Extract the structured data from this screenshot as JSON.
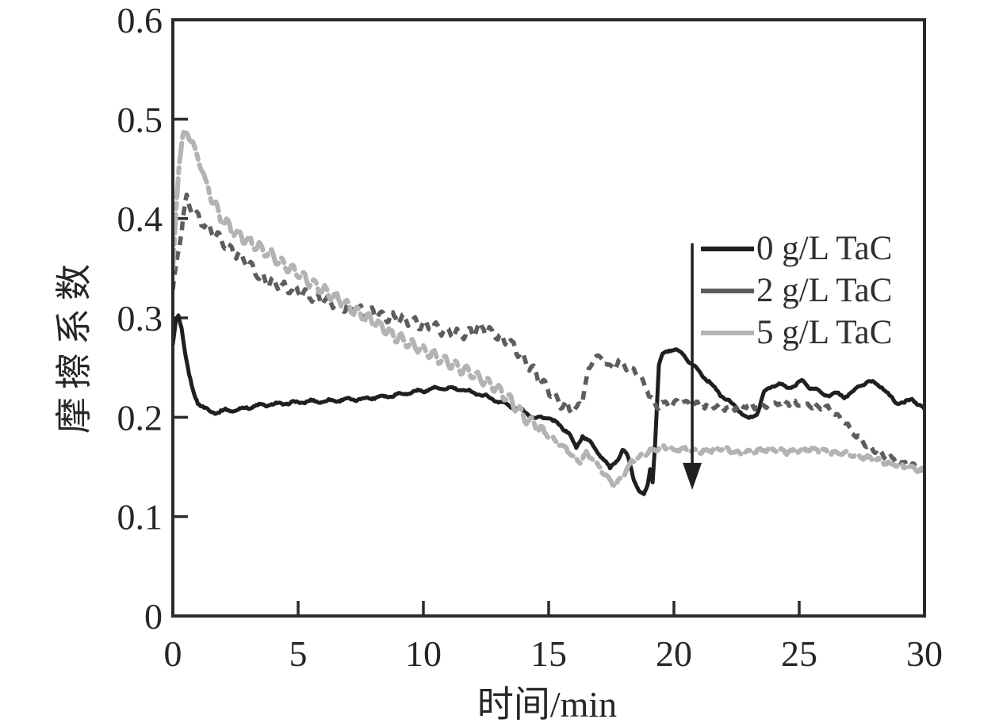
{
  "figure": {
    "background_color": "#ffffff",
    "axis_color": "#2b2b2b",
    "text_color": "#262626"
  },
  "chart_data": {
    "type": "line",
    "title": "",
    "xlabel": "时间/min",
    "ylabel": "摩擦系数",
    "xlim": [
      0,
      30
    ],
    "ylim": [
      0,
      0.6
    ],
    "x_ticks": [
      0,
      5,
      10,
      15,
      20,
      25,
      30
    ],
    "y_ticks": [
      0,
      0.1,
      0.2,
      0.3,
      0.4,
      0.5,
      0.6
    ],
    "y_tick_labels": [
      "0",
      "0.1",
      "0.2",
      "0.3",
      "0.4",
      "0.5",
      "0.6"
    ],
    "x_tick_labels": [
      "0",
      "5",
      "10",
      "15",
      "20",
      "25",
      "30"
    ],
    "grid": false,
    "legend_position": "inside-upper-right",
    "series": [
      {
        "name": "0 g/L TaC",
        "color": "#1f1f1f",
        "style": "solid",
        "points": [
          [
            0,
            0.272
          ],
          [
            0.12,
            0.298
          ],
          [
            0.22,
            0.303
          ],
          [
            0.35,
            0.29
          ],
          [
            0.5,
            0.262
          ],
          [
            0.65,
            0.242
          ],
          [
            0.8,
            0.227
          ],
          [
            1.0,
            0.215
          ],
          [
            1.25,
            0.209
          ],
          [
            1.5,
            0.206
          ],
          [
            1.8,
            0.205
          ],
          [
            2.1,
            0.207
          ],
          [
            2.5,
            0.207
          ],
          [
            3,
            0.21
          ],
          [
            3.5,
            0.212
          ],
          [
            4,
            0.213
          ],
          [
            4.5,
            0.214
          ],
          [
            5,
            0.215
          ],
          [
            5.5,
            0.216
          ],
          [
            6,
            0.216
          ],
          [
            6.5,
            0.217
          ],
          [
            7,
            0.218
          ],
          [
            7.5,
            0.218
          ],
          [
            8,
            0.22
          ],
          [
            8.5,
            0.221
          ],
          [
            9,
            0.223
          ],
          [
            9.5,
            0.225
          ],
          [
            10,
            0.227
          ],
          [
            10.5,
            0.229
          ],
          [
            11,
            0.229
          ],
          [
            11.5,
            0.228
          ],
          [
            12,
            0.225
          ],
          [
            12.5,
            0.221
          ],
          [
            13,
            0.216
          ],
          [
            13.5,
            0.211
          ],
          [
            14,
            0.206
          ],
          [
            14.5,
            0.199
          ],
          [
            15,
            0.2
          ],
          [
            15.4,
            0.192
          ],
          [
            15.8,
            0.185
          ],
          [
            16.1,
            0.168
          ],
          [
            16.35,
            0.182
          ],
          [
            16.6,
            0.176
          ],
          [
            16.9,
            0.167
          ],
          [
            17.2,
            0.158
          ],
          [
            17.45,
            0.148
          ],
          [
            17.7,
            0.156
          ],
          [
            17.95,
            0.167
          ],
          [
            18.15,
            0.161
          ],
          [
            18.4,
            0.138
          ],
          [
            18.6,
            0.126
          ],
          [
            18.8,
            0.122
          ],
          [
            18.95,
            0.131
          ],
          [
            19.05,
            0.148
          ],
          [
            19.15,
            0.136
          ],
          [
            19.25,
            0.175
          ],
          [
            19.4,
            0.252
          ],
          [
            19.55,
            0.263
          ],
          [
            19.8,
            0.268
          ],
          [
            20.1,
            0.267
          ],
          [
            20.4,
            0.262
          ],
          [
            20.7,
            0.254
          ],
          [
            21,
            0.246
          ],
          [
            21.4,
            0.236
          ],
          [
            21.8,
            0.224
          ],
          [
            22.2,
            0.216
          ],
          [
            22.6,
            0.207
          ],
          [
            23,
            0.198
          ],
          [
            23.3,
            0.203
          ],
          [
            23.6,
            0.225
          ],
          [
            23.9,
            0.231
          ],
          [
            24.2,
            0.234
          ],
          [
            24.5,
            0.229
          ],
          [
            24.8,
            0.232
          ],
          [
            25.1,
            0.237
          ],
          [
            25.35,
            0.231
          ],
          [
            25.6,
            0.229
          ],
          [
            25.9,
            0.224
          ],
          [
            26.2,
            0.222
          ],
          [
            26.5,
            0.224
          ],
          [
            26.8,
            0.221
          ],
          [
            27.1,
            0.224
          ],
          [
            27.4,
            0.232
          ],
          [
            27.7,
            0.235
          ],
          [
            28,
            0.235
          ],
          [
            28.3,
            0.231
          ],
          [
            28.6,
            0.221
          ],
          [
            28.9,
            0.215
          ],
          [
            29.2,
            0.214
          ],
          [
            29.5,
            0.219
          ],
          [
            29.75,
            0.213
          ],
          [
            30,
            0.208
          ]
        ]
      },
      {
        "name": "2 g/L TaC",
        "color": "#5d5d5d",
        "style": "dashed",
        "points": [
          [
            0,
            0.328
          ],
          [
            0.2,
            0.362
          ],
          [
            0.4,
            0.402
          ],
          [
            0.55,
            0.418
          ],
          [
            0.7,
            0.412
          ],
          [
            0.9,
            0.403
          ],
          [
            1.2,
            0.396
          ],
          [
            1.5,
            0.389
          ],
          [
            1.9,
            0.379
          ],
          [
            2.3,
            0.369
          ],
          [
            2.7,
            0.362
          ],
          [
            3.1,
            0.352
          ],
          [
            3.5,
            0.34
          ],
          [
            4,
            0.335
          ],
          [
            4.5,
            0.331
          ],
          [
            5,
            0.327
          ],
          [
            5.5,
            0.322
          ],
          [
            6,
            0.318
          ],
          [
            6.5,
            0.314
          ],
          [
            7,
            0.31
          ],
          [
            7.5,
            0.307
          ],
          [
            8,
            0.305
          ],
          [
            8.5,
            0.301
          ],
          [
            9,
            0.299
          ],
          [
            9.5,
            0.297
          ],
          [
            10,
            0.293
          ],
          [
            10.5,
            0.29
          ],
          [
            11,
            0.286
          ],
          [
            11.5,
            0.283
          ],
          [
            12,
            0.287
          ],
          [
            12.4,
            0.291
          ],
          [
            12.8,
            0.284
          ],
          [
            13.2,
            0.278
          ],
          [
            13.6,
            0.271
          ],
          [
            14,
            0.259
          ],
          [
            14.4,
            0.246
          ],
          [
            14.8,
            0.233
          ],
          [
            15.2,
            0.221
          ],
          [
            15.6,
            0.212
          ],
          [
            16,
            0.206
          ],
          [
            16.3,
            0.214
          ],
          [
            16.6,
            0.247
          ],
          [
            16.85,
            0.262
          ],
          [
            17.1,
            0.259
          ],
          [
            17.35,
            0.253
          ],
          [
            17.6,
            0.25
          ],
          [
            17.85,
            0.257
          ],
          [
            18.1,
            0.251
          ],
          [
            18.4,
            0.247
          ],
          [
            18.7,
            0.239
          ],
          [
            19,
            0.224
          ],
          [
            19.3,
            0.211
          ],
          [
            19.6,
            0.214
          ],
          [
            19.9,
            0.212
          ],
          [
            20.2,
            0.216
          ],
          [
            20.6,
            0.214
          ],
          [
            21,
            0.212
          ],
          [
            21.4,
            0.209
          ],
          [
            21.8,
            0.211
          ],
          [
            22.2,
            0.209
          ],
          [
            22.6,
            0.21
          ],
          [
            23,
            0.212
          ],
          [
            23.4,
            0.21
          ],
          [
            23.8,
            0.213
          ],
          [
            24.2,
            0.214
          ],
          [
            24.6,
            0.215
          ],
          [
            25,
            0.213
          ],
          [
            25.4,
            0.212
          ],
          [
            25.8,
            0.211
          ],
          [
            26.2,
            0.208
          ],
          [
            26.6,
            0.2
          ],
          [
            27,
            0.189
          ],
          [
            27.4,
            0.178
          ],
          [
            27.8,
            0.17
          ],
          [
            28.2,
            0.163
          ],
          [
            28.6,
            0.159
          ],
          [
            29,
            0.155
          ],
          [
            29.4,
            0.152
          ],
          [
            29.7,
            0.15
          ],
          [
            30,
            0.147
          ]
        ]
      },
      {
        "name": "5 g/L TaC",
        "color": "#b3b3b3",
        "style": "dash-dot",
        "points": [
          [
            0,
            0.348
          ],
          [
            0.12,
            0.405
          ],
          [
            0.25,
            0.455
          ],
          [
            0.4,
            0.483
          ],
          [
            0.5,
            0.488
          ],
          [
            0.65,
            0.482
          ],
          [
            0.8,
            0.476
          ],
          [
            1,
            0.461
          ],
          [
            1.3,
            0.438
          ],
          [
            1.6,
            0.418
          ],
          [
            1.9,
            0.401
          ],
          [
            2.2,
            0.393
          ],
          [
            2.5,
            0.386
          ],
          [
            2.8,
            0.381
          ],
          [
            3.1,
            0.376
          ],
          [
            3.5,
            0.37
          ],
          [
            4,
            0.362
          ],
          [
            4.5,
            0.352
          ],
          [
            5,
            0.345
          ],
          [
            5.5,
            0.336
          ],
          [
            6,
            0.328
          ],
          [
            6.5,
            0.32
          ],
          [
            7,
            0.312
          ],
          [
            7.5,
            0.303
          ],
          [
            8,
            0.297
          ],
          [
            8.5,
            0.288
          ],
          [
            9,
            0.28
          ],
          [
            9.5,
            0.273
          ],
          [
            10,
            0.268
          ],
          [
            10.5,
            0.261
          ],
          [
            11,
            0.255
          ],
          [
            11.5,
            0.249
          ],
          [
            12,
            0.243
          ],
          [
            12.5,
            0.236
          ],
          [
            13,
            0.228
          ],
          [
            13.5,
            0.216
          ],
          [
            14,
            0.201
          ],
          [
            14.5,
            0.192
          ],
          [
            15,
            0.181
          ],
          [
            15.3,
            0.176
          ],
          [
            15.7,
            0.168
          ],
          [
            16,
            0.159
          ],
          [
            16.25,
            0.155
          ],
          [
            16.5,
            0.164
          ],
          [
            16.8,
            0.157
          ],
          [
            17.1,
            0.147
          ],
          [
            17.4,
            0.138
          ],
          [
            17.65,
            0.131
          ],
          [
            18,
            0.143
          ],
          [
            18.3,
            0.155
          ],
          [
            18.7,
            0.161
          ],
          [
            19.1,
            0.167
          ],
          [
            19.6,
            0.17
          ],
          [
            20,
            0.167
          ],
          [
            20.5,
            0.168
          ],
          [
            21,
            0.165
          ],
          [
            21.5,
            0.167
          ],
          [
            22,
            0.168
          ],
          [
            22.5,
            0.164
          ],
          [
            23,
            0.165
          ],
          [
            23.5,
            0.167
          ],
          [
            24,
            0.168
          ],
          [
            24.5,
            0.165
          ],
          [
            25,
            0.167
          ],
          [
            25.5,
            0.168
          ],
          [
            26,
            0.166
          ],
          [
            26.5,
            0.164
          ],
          [
            27,
            0.163
          ],
          [
            27.5,
            0.16
          ],
          [
            28,
            0.158
          ],
          [
            28.5,
            0.154
          ],
          [
            29,
            0.151
          ],
          [
            29.5,
            0.149
          ],
          [
            30,
            0.146
          ]
        ]
      }
    ],
    "annotation_arrow": {
      "x": 20.73,
      "y_from": 0.375,
      "y_to": 0.127,
      "direction": "down",
      "color": "#1f1f1f"
    }
  },
  "legend": {
    "items": [
      {
        "label": "0 g/L TaC",
        "color": "#1f1f1f"
      },
      {
        "label": "2 g/L TaC",
        "color": "#5d5d5d"
      },
      {
        "label": "5 g/L TaC",
        "color": "#b3b3b3"
      }
    ]
  }
}
